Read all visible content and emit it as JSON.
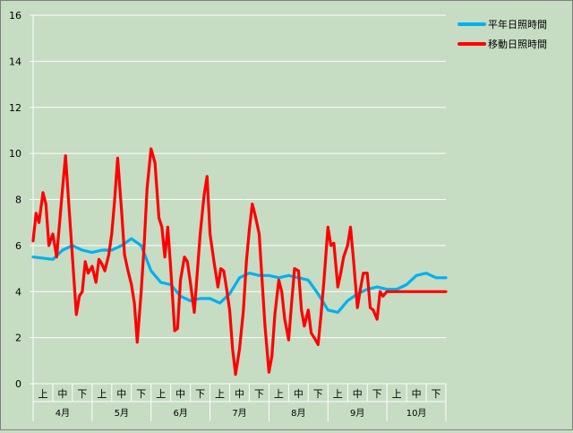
{
  "chart_data": {
    "type": "line",
    "title": "",
    "xlabel": "",
    "ylabel": "",
    "ylim": [
      0,
      16
    ],
    "yticks": [
      0,
      2,
      4,
      6,
      8,
      10,
      12,
      14,
      16
    ],
    "grid": true,
    "legend_position": "top-right",
    "x_range": [
      0,
      21
    ],
    "periods": [
      "上",
      "中",
      "下"
    ],
    "months": [
      "4月",
      "5月",
      "6月",
      "7月",
      "8月",
      "9月",
      "10月"
    ],
    "series": [
      {
        "name": "平年日照時間",
        "color": "#00b0f0",
        "x": [
          0,
          1,
          1.5,
          2,
          2.5,
          3,
          3.5,
          4,
          4.5,
          5,
          5.5,
          6,
          6.5,
          7,
          7.5,
          8,
          8.5,
          9,
          9.5,
          10,
          10.5,
          11,
          11.5,
          12,
          12.5,
          13,
          13.5,
          14,
          14.5,
          15,
          15.5,
          16,
          16.5,
          17,
          17.5,
          18,
          18.5,
          19,
          19.5,
          20,
          20.5,
          21
        ],
        "y": [
          5.5,
          5.4,
          5.8,
          6.0,
          5.8,
          5.7,
          5.8,
          5.8,
          6.0,
          6.3,
          6.0,
          4.9,
          4.4,
          4.3,
          3.8,
          3.6,
          3.7,
          3.7,
          3.5,
          3.9,
          4.6,
          4.8,
          4.7,
          4.7,
          4.6,
          4.7,
          4.6,
          4.5,
          3.9,
          3.2,
          3.1,
          3.6,
          3.9,
          4.1,
          4.2,
          4.1,
          4.1,
          4.3,
          4.7,
          4.8,
          4.6,
          4.6
        ]
      },
      {
        "name": "移動日照時間",
        "color": "#ff0000",
        "x": [
          0,
          0.15,
          0.3,
          0.5,
          0.65,
          0.8,
          1.0,
          1.2,
          1.35,
          1.5,
          1.65,
          1.8,
          2.0,
          2.2,
          2.35,
          2.5,
          2.65,
          2.8,
          3.0,
          3.2,
          3.35,
          3.5,
          3.65,
          3.85,
          4.0,
          4.15,
          4.3,
          4.5,
          4.65,
          4.8,
          5.0,
          5.15,
          5.3,
          5.5,
          5.65,
          5.8,
          6.0,
          6.2,
          6.4,
          6.55,
          6.7,
          6.85,
          7.0,
          7.2,
          7.35,
          7.5,
          7.7,
          7.85,
          8.0,
          8.2,
          8.35,
          8.5,
          8.7,
          8.85,
          9.0,
          9.2,
          9.4,
          9.55,
          9.7,
          9.85,
          10.0,
          10.15,
          10.3,
          10.5,
          10.7,
          10.85,
          11.0,
          11.15,
          11.3,
          11.5,
          11.65,
          11.8,
          12.0,
          12.15,
          12.3,
          12.5,
          12.65,
          12.8,
          13.0,
          13.15,
          13.3,
          13.5,
          13.65,
          13.8,
          14.0,
          14.15,
          14.3,
          14.5,
          14.65,
          14.8,
          15.0,
          15.15,
          15.3,
          15.5,
          15.65,
          15.8,
          16.0,
          16.15,
          16.3,
          16.5,
          16.65,
          16.8,
          17.0,
          17.15,
          17.3,
          17.5,
          17.65,
          17.8,
          18.0,
          18.15,
          18.3,
          18.5,
          18.65,
          18.8,
          19.0,
          19.15,
          19.3,
          19.5,
          19.65,
          19.8,
          20.0,
          20.15,
          20.3,
          20.5,
          20.65,
          20.8,
          21.0
        ],
        "y": [
          6.2,
          7.4,
          7.0,
          8.3,
          7.8,
          6.0,
          6.5,
          5.5,
          7.0,
          8.5,
          9.9,
          8.0,
          5.5,
          3.0,
          3.8,
          4.0,
          5.3,
          4.8,
          5.1,
          4.4,
          5.4,
          5.2,
          4.9,
          5.6,
          6.5,
          8.0,
          9.8,
          7.5,
          5.6,
          5.0,
          4.3,
          3.5,
          1.8,
          4.0,
          6.0,
          8.5,
          10.2,
          9.6,
          7.2,
          6.8,
          5.5,
          6.8,
          5.0,
          2.3,
          2.4,
          4.5,
          5.5,
          5.3,
          4.4,
          3.1,
          4.8,
          6.5,
          8.2,
          9.0,
          6.5,
          5.3,
          4.2,
          5.0,
          4.9,
          4.1,
          3.2,
          1.5,
          0.4,
          1.5,
          3.2,
          5.3,
          6.7,
          7.8,
          7.3,
          6.5,
          4.5,
          2.5,
          0.5,
          1.2,
          3.0,
          4.5,
          4.0,
          2.8,
          1.9,
          3.5,
          5.0,
          4.9,
          3.2,
          2.5,
          3.2,
          2.2,
          2.0,
          1.7,
          3.0,
          4.5,
          6.8,
          6.0,
          6.1,
          4.2,
          4.8,
          5.5,
          6.0,
          6.8,
          5.4,
          3.3,
          4.1,
          4.8,
          4.8,
          3.3,
          3.2,
          2.8,
          4.0,
          3.8,
          4.0,
          4.0,
          4.0,
          4.0,
          4.0,
          4.0,
          4.0,
          4.0,
          4.0,
          4.0,
          4.0,
          4.0,
          4.0,
          4.0,
          4.0,
          4.0,
          4.0,
          4.0,
          4.0
        ]
      }
    ]
  }
}
